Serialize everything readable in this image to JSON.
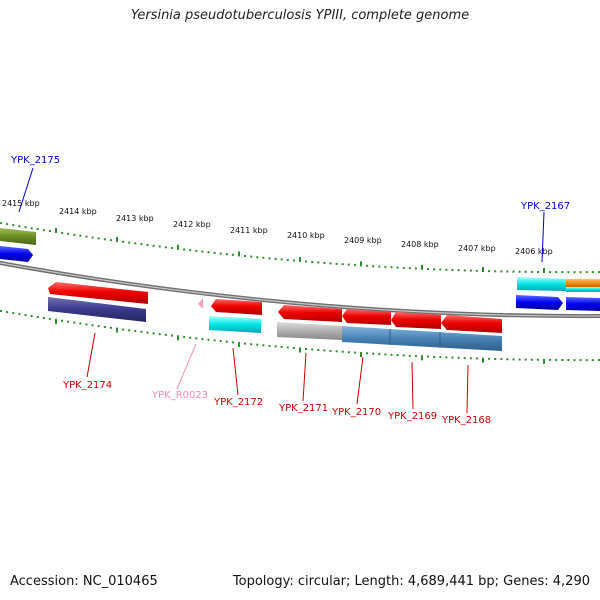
{
  "title": "Yersinia pseudotuberculosis YPIII, complete genome",
  "footer": {
    "accession": "Accession: NC_010465",
    "summary": "Topology: circular; Length: 4,689,441 bp; Genes: 4,290"
  },
  "colors": {
    "forward_gene": "#ee0000",
    "reverse_gene": "#ee0000",
    "cds": "#00e5e5",
    "cds_dark": "#0000dd",
    "olive": "#6b8e23",
    "navy": "#3a3a8c",
    "steel": "#4682b4",
    "grey": "#b0b0b0",
    "orange": "#ff8c00",
    "pink": "#f7a1c4",
    "tick": "#2e8b2e",
    "backbone": "#808080",
    "label_red": "#cc0000",
    "label_blue": "#0000cc",
    "label_pink": "#f08cb8"
  },
  "scale": {
    "unit": "kbp",
    "ticks": [
      {
        "label": "2415 kbp"
      },
      {
        "label": "2414 kbp"
      },
      {
        "label": "2413 kbp"
      },
      {
        "label": "2412 kbp"
      },
      {
        "label": "2411 kbp"
      },
      {
        "label": "2410 kbp"
      },
      {
        "label": "2409 kbp"
      },
      {
        "label": "2408 kbp"
      },
      {
        "label": "2407 kbp"
      },
      {
        "label": "2406 kbp"
      }
    ]
  },
  "genes": [
    {
      "id": "YPK_2175",
      "color": "label_blue"
    },
    {
      "id": "YPK_2167",
      "color": "label_blue"
    },
    {
      "id": "YPK_2174",
      "color": "label_red"
    },
    {
      "id": "YPK_R0023",
      "color": "label_pink"
    },
    {
      "id": "YPK_2172",
      "color": "label_red"
    },
    {
      "id": "YPK_2171",
      "color": "label_red"
    },
    {
      "id": "YPK_2170",
      "color": "label_red"
    },
    {
      "id": "YPK_2169",
      "color": "label_red"
    },
    {
      "id": "YPK_2168",
      "color": "label_red"
    }
  ]
}
